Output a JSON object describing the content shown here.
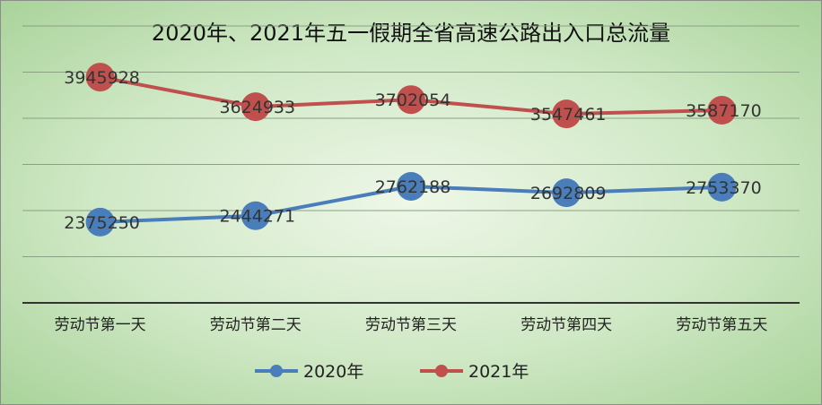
{
  "chart_data": {
    "type": "line",
    "title": "2020年、2021年五一假期全省高速公路出入口总流量",
    "categories": [
      "劳动节第一天",
      "劳动节第二天",
      "劳动节第三天",
      "劳动节第四天",
      "劳动节第五天"
    ],
    "series": [
      {
        "name": "2020年",
        "color": "#4a7ebb",
        "values": [
          2375250,
          2444271,
          2762188,
          2692809,
          2753370
        ]
      },
      {
        "name": "2021年",
        "color": "#c0504d",
        "values": [
          3945928,
          3624933,
          3702054,
          3547461,
          3587170
        ]
      }
    ],
    "ylim": [
      1500000,
      4500000
    ],
    "y_gridline_step": 500000,
    "grid": true,
    "legend_position": "bottom",
    "xlabel": "",
    "ylabel": ""
  }
}
